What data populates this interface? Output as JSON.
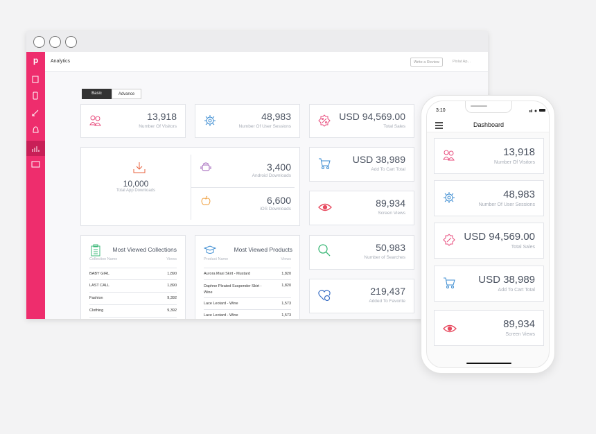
{
  "browser": {
    "logo": "p",
    "header": {
      "title": "Analytics",
      "review_button": "Write a Review",
      "app_menu": "Pixlat Ap..."
    },
    "tabs": [
      "Basic",
      "Advance"
    ],
    "stats": [
      {
        "value": "13,918",
        "label": "Number Of Visitors"
      },
      {
        "value": "48,983",
        "label": "Number Of User Sessions"
      },
      {
        "value": "USD 94,569.00",
        "label": "Total Sales"
      },
      {
        "value": "USD 38,989",
        "label": "Add To Cart Total"
      },
      {
        "value": "89,934",
        "label": "Screen Views"
      },
      {
        "value": "50,983",
        "label": "Number of Searches"
      },
      {
        "value": "219,437",
        "label": "Added To Favorite"
      }
    ],
    "downloads": {
      "total": {
        "value": "10,000",
        "label": "Total App Downloads"
      },
      "android": {
        "value": "3,400",
        "label": "Android Downloads"
      },
      "ios": {
        "value": "6,600",
        "label": "iOS Downloads"
      }
    },
    "collections": {
      "title": "Most Viewed Collections",
      "columns": [
        "Collection Name",
        "Views"
      ],
      "rows": [
        [
          "BABY GIRL",
          "1,890"
        ],
        [
          "LAST CALL",
          "1,890"
        ],
        [
          "Fashion",
          "9,392"
        ],
        [
          "Clothing",
          "9,392"
        ]
      ]
    },
    "products": {
      "title": "Most Viewed Products",
      "columns": [
        "Product Name",
        "Views"
      ],
      "rows": [
        [
          "Aurora Maxi Skirt - Mustard",
          "1,820"
        ],
        [
          "Daphne Pleated Suspender Skirt - Wine",
          "1,820"
        ],
        [
          "Lace Leotard - Wine",
          "1,573"
        ],
        [
          "Lace Leotard - Wine",
          "1,573"
        ]
      ]
    }
  },
  "phone": {
    "time": "3:10",
    "title": "Dashboard"
  }
}
